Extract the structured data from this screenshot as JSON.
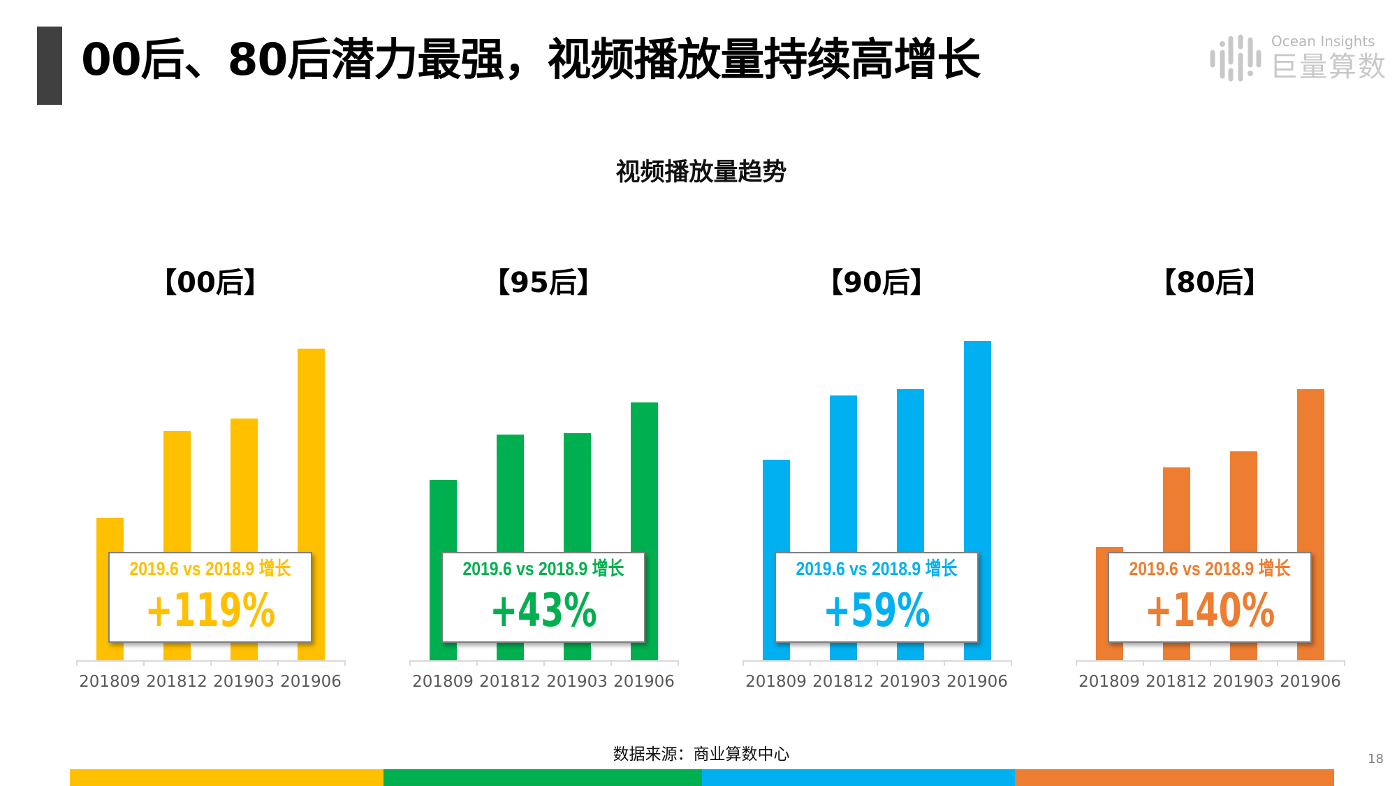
{
  "header": {
    "title": "00后、80后潜力最强，视频播放量持续高增长"
  },
  "logo": {
    "text_en": "Ocean Insights",
    "text_cn": "巨量算数"
  },
  "subtitle": "视频播放量趋势",
  "colors": {
    "yellow": "#FFC000",
    "green": "#00B050",
    "blue": "#00B0F0",
    "orange": "#ED7D31",
    "title_bar": "#404040"
  },
  "chart_data": [
    {
      "type": "bar",
      "title": "【00后】",
      "categories": [
        "201809",
        "201812",
        "201903",
        "201906"
      ],
      "values": [
        100,
        161,
        170,
        219
      ],
      "ylim": [
        0,
        237
      ],
      "color": "#FFC000",
      "grid": false,
      "annotation": {
        "line1": "2019.6 vs 2018.9 增长",
        "value": "+119%"
      }
    },
    {
      "type": "bar",
      "title": "【95后】",
      "categories": [
        "201809",
        "201812",
        "201903",
        "201906"
      ],
      "values": [
        100,
        125,
        126,
        143
      ],
      "ylim": [
        0,
        187
      ],
      "color": "#00B050",
      "grid": false,
      "annotation": {
        "line1": "2019.6 vs 2018.9 增长",
        "value": "+43%"
      }
    },
    {
      "type": "bar",
      "title": "【90后】",
      "categories": [
        "201809",
        "201812",
        "201903",
        "201906"
      ],
      "values": [
        100,
        132,
        135,
        159
      ],
      "ylim": [
        0,
        168
      ],
      "color": "#00B0F0",
      "grid": false,
      "annotation": {
        "line1": "2019.6 vs 2018.9 增长",
        "value": "+59%"
      }
    },
    {
      "type": "bar",
      "title": "【80后】",
      "categories": [
        "201809",
        "201812",
        "201903",
        "201906"
      ],
      "values": [
        100,
        171,
        185,
        240
      ],
      "ylim": [
        0,
        299
      ],
      "color": "#ED7D31",
      "grid": false,
      "annotation": {
        "line1": "2019.6 vs 2018.9 增长",
        "value": "+140%"
      }
    }
  ],
  "footer": {
    "source": "数据来源：商业算数中心",
    "page_number": "18"
  }
}
